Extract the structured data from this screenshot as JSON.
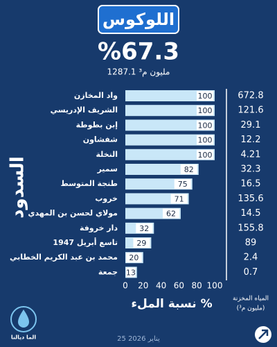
{
  "chart_data": {
    "type": "bar",
    "title": "اللوكوس",
    "subtitle": "%67.3",
    "total": "1287.1 مليون م³",
    "y_label": "السدود",
    "x_label": "نسبة الملء %",
    "stored_label": [
      "المياه المخزنة",
      "(مليون م³)"
    ],
    "categories": [
      "واد المخازن",
      "الشريف الإدريسي",
      "إبن بطوطة",
      "شفشاون",
      "النخلة",
      "سمير",
      "طنجة المتوسط",
      "خروب",
      "مولاي لحسن بن المهدي",
      "دار خروفة",
      "تاسع أبريل 1947",
      "محمد بن عبد الكريم الخطابي",
      "جمعة"
    ],
    "values": [
      100,
      100,
      100,
      100,
      100,
      82,
      75,
      71,
      62,
      32,
      29,
      20,
      13
    ],
    "stored_values": [
      672.8,
      121.6,
      29.1,
      12.2,
      4.21,
      32.3,
      16.5,
      135.6,
      14.5,
      155.8,
      89,
      2.4,
      0.7
    ],
    "color": "#c9e7f8",
    "xlim": [
      0,
      100
    ],
    "xticks": [
      0,
      20,
      40,
      60,
      80,
      100
    ],
    "date": "25 يناير 2026",
    "logo": "الما ديالنا"
  }
}
